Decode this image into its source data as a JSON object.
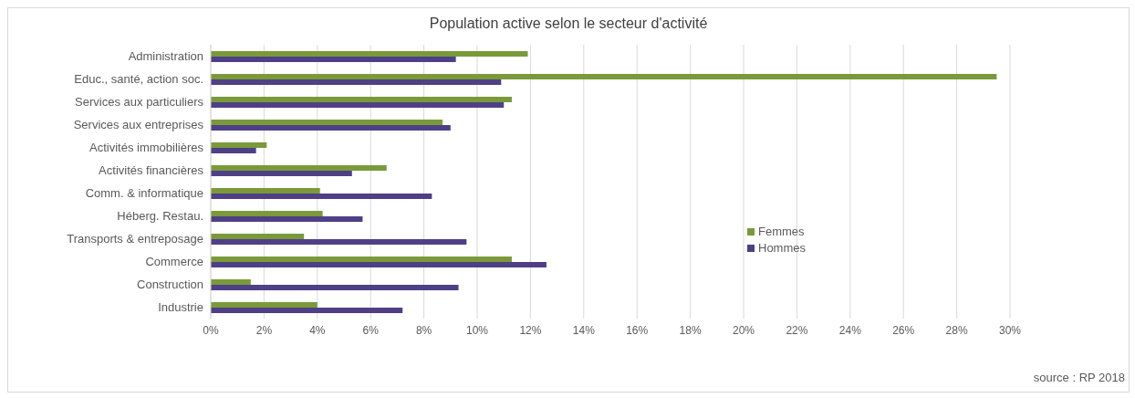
{
  "chart_data": {
    "type": "bar",
    "orientation": "horizontal",
    "title": "Population active selon le secteur d'activité",
    "categories": [
      "Administration",
      "Educ., santé, action soc.",
      "Services aux particuliers",
      "Services aux entreprises",
      "Activités immobilières",
      "Activités financières",
      "Comm. & informatique",
      "Héberg. Restau.",
      "Transports & entreposage",
      "Commerce",
      "Construction",
      "Industrie"
    ],
    "series": [
      {
        "name": "Femmes",
        "color": "#7a9a3a",
        "values": [
          11.9,
          29.5,
          11.3,
          8.7,
          2.1,
          6.6,
          4.1,
          4.2,
          3.5,
          11.3,
          1.5,
          4.0
        ]
      },
      {
        "name": "Hommes",
        "color": "#4f3f86",
        "values": [
          9.2,
          10.9,
          11.0,
          9.0,
          1.7,
          5.3,
          8.3,
          5.7,
          9.6,
          12.6,
          9.3,
          7.2
        ]
      }
    ],
    "xlim": [
      0,
      30
    ],
    "xticks": [
      {
        "value": 0,
        "label": "0%"
      },
      {
        "value": 2,
        "label": "2%"
      },
      {
        "value": 4,
        "label": "4%"
      },
      {
        "value": 6,
        "label": "6%"
      },
      {
        "value": 8,
        "label": "8%"
      },
      {
        "value": 10,
        "label": "10%"
      },
      {
        "value": 12,
        "label": "12%"
      },
      {
        "value": 14,
        "label": "14%"
      },
      {
        "value": 16,
        "label": "16%"
      },
      {
        "value": 18,
        "label": "18%"
      },
      {
        "value": 20,
        "label": "20%"
      },
      {
        "value": 22,
        "label": "22%"
      },
      {
        "value": 24,
        "label": "24%"
      },
      {
        "value": 26,
        "label": "26%"
      },
      {
        "value": 28,
        "label": "28%"
      },
      {
        "value": 30,
        "label": "30%"
      }
    ],
    "grid": "x",
    "legend": "right",
    "annotations": [
      "source : RP 2018"
    ]
  }
}
